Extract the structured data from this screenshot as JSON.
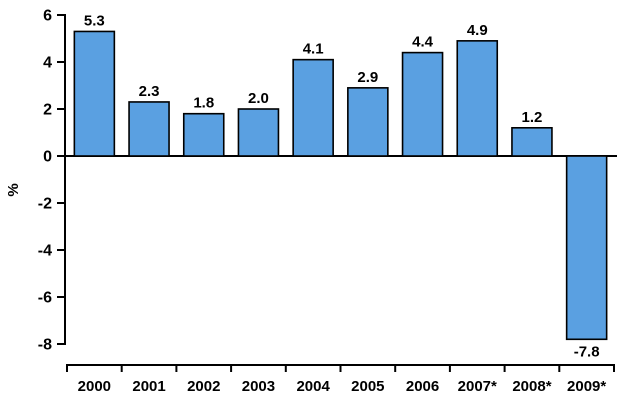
{
  "chart_data": {
    "type": "bar",
    "title": "",
    "xlabel": "",
    "ylabel": "%",
    "categories": [
      "2000",
      "2001",
      "2002",
      "2003",
      "2004",
      "2005",
      "2006",
      "2007*",
      "2008*",
      "2009*"
    ],
    "values": [
      5.3,
      2.3,
      1.8,
      2.0,
      4.1,
      2.9,
      4.4,
      4.9,
      1.2,
      -7.8
    ],
    "value_labels": [
      "5.3",
      "2.3",
      "1.8",
      "2.0",
      "4.1",
      "2.9",
      "4.4",
      "4.9",
      "1.2",
      "-7.8"
    ],
    "y_ticks": [
      6,
      4,
      2,
      0,
      -2,
      -4,
      -6,
      -8
    ],
    "y_tick_labels": [
      "6",
      "4",
      "2",
      "0",
      "-2",
      "-4",
      "-6",
      "-8"
    ],
    "ylim": [
      -8,
      6
    ],
    "grid": false,
    "legend": "none",
    "colors": {
      "bar_fill": "#5AA0E1",
      "bar_border": "#000000",
      "axis": "#000000",
      "background": "#FFFFFF"
    }
  }
}
